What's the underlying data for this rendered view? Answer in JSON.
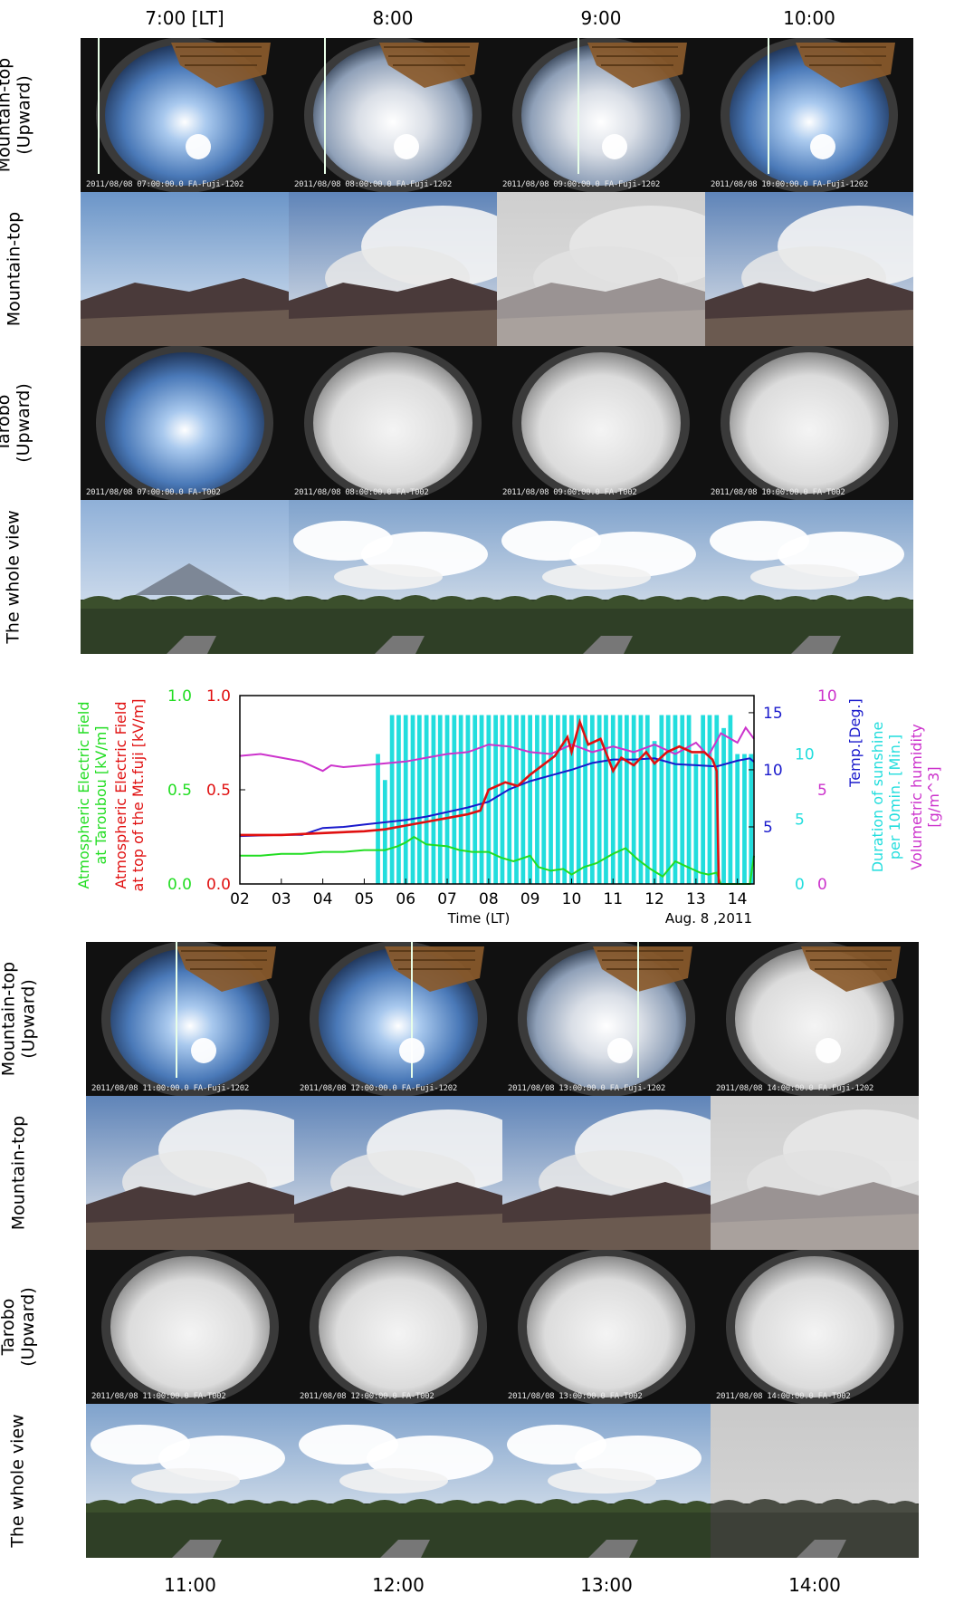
{
  "colors": {
    "electric_taroubou": "#22dd22",
    "electric_fuji": "#e01010",
    "temperature": "#1a1acc",
    "sunshine": "#22dddd",
    "humidity": "#cc33cc"
  },
  "top_times": [
    "7:00 [LT]",
    "8:00",
    "9:00",
    "10:00"
  ],
  "bottom_times": [
    "11:00",
    "12:00",
    "13:00",
    "14:00"
  ],
  "rows": [
    {
      "key": "mt_up",
      "line1": "Mountain-top",
      "line2": "(Upward)"
    },
    {
      "key": "mt",
      "line1": "Mountain-top",
      "line2": ""
    },
    {
      "key": "tarobo",
      "line1": "Tarobo",
      "line2": "(Upward)"
    },
    {
      "key": "whole",
      "line1": "The whole view",
      "line2": ""
    }
  ],
  "stamps": {
    "top": {
      "mt_up": [
        "2011/08/08 07:00:00.0 FA-Fuji-1202",
        "2011/08/08 08:00:00.0 FA-Fuji-1202",
        "2011/08/08 09:00:00.0 FA-Fuji-1202",
        "2011/08/08 10:00:00.0 FA-Fuji-1202"
      ],
      "tarobo": [
        "2011/08/08 07:00:00.0 FA-T002",
        "2011/08/08 08:00:00.0 FA-T002",
        "2011/08/08 09:00:00.0 FA-T002",
        "2011/08/08 10:00:00.0 FA-T002"
      ]
    },
    "bottom": {
      "mt_up": [
        "2011/08/08 11:00:00.0 FA-Fuji-1202",
        "2011/08/08 12:00:00.0 FA-Fuji-1202",
        "2011/08/08 13:00:00.0 FA-Fuji-1202",
        "2011/08/08 14:00:00.0 FA-Fuji-1202"
      ],
      "tarobo": [
        "2011/08/08 11:00:00.0 FA-T002",
        "2011/08/08 12:00:00.0 FA-T002",
        "2011/08/08 13:00:00.0 FA-T002",
        "2011/08/08 14:00:00.0 FA-T002"
      ]
    }
  },
  "chart_data": {
    "type": "line",
    "xlabel": "Time (LT)",
    "date_label": "Aug. 8 ,2011",
    "x_ticks": [
      "02",
      "03",
      "04",
      "05",
      "06",
      "07",
      "08",
      "09",
      "10",
      "11",
      "12",
      "13",
      "14"
    ],
    "xlim": [
      2,
      14.4
    ],
    "axes": {
      "electric_taroubou": {
        "label_lines": [
          "Atmospheric Electric Field",
          "at Taroubou [kV/m]"
        ],
        "ylim": [
          0,
          1.0
        ],
        "ticks": [
          "0.0",
          "0.5",
          "1.0"
        ]
      },
      "electric_fuji": {
        "label_lines": [
          "Atmospheric Electric Field",
          "at top of the Mt.fuji [kV/m]"
        ],
        "ylim": [
          0,
          1.0
        ],
        "ticks": [
          "0.0",
          "0.5",
          "1.0"
        ]
      },
      "temperature": {
        "label_lines": [
          "Temp.[Deg.]"
        ],
        "ylim": [
          0,
          16.5
        ],
        "ticks": [
          "5",
          "10",
          "15"
        ]
      },
      "sunshine": {
        "label_lines": [
          "Duration of sunshine",
          "per 10min. [Min.]"
        ],
        "ylim": [
          0,
          14.5
        ],
        "ticks": [
          "0",
          "5",
          "10"
        ]
      },
      "humidity": {
        "label_lines": [
          "Volumetric humidity",
          "[g/m^3]"
        ],
        "ylim": [
          0,
          10
        ],
        "ticks": [
          "0",
          "5",
          "10"
        ]
      }
    },
    "series": [
      {
        "name": "Atmospheric Electric Field at Taroubou [kV/m]",
        "axis": "electric_taroubou",
        "x": [
          2.0,
          2.5,
          3.0,
          3.5,
          4.0,
          4.5,
          5.0,
          5.5,
          5.8,
          6.0,
          6.2,
          6.5,
          7.0,
          7.3,
          7.6,
          8.0,
          8.3,
          8.6,
          9.0,
          9.2,
          9.5,
          9.8,
          10.0,
          10.3,
          10.6,
          11.0,
          11.3,
          11.6,
          11.9,
          12.2,
          12.5,
          12.8,
          13.1,
          13.3,
          13.5,
          13.6,
          14.3,
          14.4
        ],
        "y": [
          0.15,
          0.15,
          0.16,
          0.16,
          0.17,
          0.17,
          0.18,
          0.18,
          0.2,
          0.22,
          0.25,
          0.21,
          0.2,
          0.18,
          0.17,
          0.17,
          0.14,
          0.12,
          0.15,
          0.09,
          0.07,
          0.08,
          0.05,
          0.09,
          0.11,
          0.16,
          0.19,
          0.13,
          0.08,
          0.04,
          0.12,
          0.09,
          0.06,
          0.05,
          0.06,
          0.0,
          0.0,
          0.15
        ]
      },
      {
        "name": "Atmospheric Electric Field at top of the Mt.fuji [kV/m]",
        "axis": "electric_fuji",
        "x": [
          2.0,
          3.0,
          4.0,
          5.0,
          5.5,
          6.0,
          6.5,
          7.0,
          7.5,
          7.8,
          8.0,
          8.4,
          8.7,
          9.0,
          9.3,
          9.6,
          9.9,
          10.0,
          10.2,
          10.4,
          10.7,
          11.0,
          11.2,
          11.5,
          11.8,
          12.0,
          12.3,
          12.6,
          12.9,
          13.2,
          13.4,
          13.5,
          13.55
        ],
        "y": [
          0.26,
          0.26,
          0.27,
          0.28,
          0.29,
          0.31,
          0.33,
          0.35,
          0.37,
          0.39,
          0.5,
          0.54,
          0.52,
          0.58,
          0.63,
          0.68,
          0.78,
          0.7,
          0.86,
          0.74,
          0.77,
          0.6,
          0.67,
          0.63,
          0.7,
          0.64,
          0.7,
          0.73,
          0.7,
          0.7,
          0.66,
          0.6,
          0.0
        ]
      },
      {
        "name": "Temp.[Deg.]",
        "axis": "temperature",
        "x": [
          2.0,
          3.0,
          3.5,
          4.0,
          4.5,
          5.0,
          5.5,
          6.0,
          6.5,
          7.0,
          7.5,
          8.0,
          8.5,
          9.0,
          9.5,
          10.0,
          10.5,
          11.0,
          11.5,
          12.0,
          12.5,
          13.0,
          13.5,
          14.0,
          14.3,
          14.4
        ],
        "y": [
          4.2,
          4.3,
          4.3,
          4.9,
          5.0,
          5.2,
          5.4,
          5.6,
          5.9,
          6.3,
          6.7,
          7.2,
          8.3,
          9.0,
          9.5,
          10.0,
          10.6,
          10.9,
          10.9,
          11.0,
          10.5,
          10.4,
          10.3,
          10.8,
          11.0,
          10.7
        ]
      },
      {
        "name": "Volumetric humidity [g/m^3]",
        "axis": "humidity",
        "x": [
          2.0,
          2.5,
          3.0,
          3.5,
          4.0,
          4.2,
          4.5,
          5.0,
          5.5,
          6.0,
          6.5,
          7.0,
          7.5,
          8.0,
          8.5,
          9.0,
          9.5,
          10.0,
          10.5,
          11.0,
          11.5,
          12.0,
          12.5,
          13.0,
          13.3,
          13.6,
          14.0,
          14.2,
          14.4
        ],
        "y": [
          6.8,
          6.9,
          6.7,
          6.5,
          6.0,
          6.3,
          6.2,
          6.3,
          6.4,
          6.5,
          6.7,
          6.9,
          7.0,
          7.4,
          7.3,
          7.0,
          6.9,
          7.4,
          7.0,
          7.3,
          7.0,
          7.4,
          6.9,
          7.5,
          6.8,
          8.0,
          7.5,
          8.3,
          7.7
        ]
      },
      {
        "name": "Duration of sunshine per 10min. [Min.]",
        "axis": "sunshine",
        "type": "bar",
        "x": [
          5.33,
          5.5,
          5.67,
          5.83,
          6.0,
          6.17,
          6.33,
          6.5,
          6.67,
          6.83,
          7.0,
          7.17,
          7.33,
          7.5,
          7.67,
          7.83,
          8.0,
          8.17,
          8.33,
          8.5,
          8.67,
          8.83,
          9.0,
          9.17,
          9.33,
          9.5,
          9.67,
          9.83,
          10.0,
          10.17,
          10.33,
          10.5,
          10.67,
          10.83,
          11.0,
          11.17,
          11.33,
          11.5,
          11.67,
          11.83,
          12.0,
          12.17,
          12.33,
          12.5,
          12.67,
          12.83,
          13.0,
          13.17,
          13.33,
          13.5,
          13.67,
          13.83,
          14.0,
          14.17,
          14.33
        ],
        "y": [
          10,
          8,
          13,
          13,
          13,
          13,
          13,
          13,
          13,
          13,
          13,
          13,
          13,
          13,
          13,
          13,
          13,
          13,
          13,
          13,
          13,
          13,
          13,
          13,
          13,
          13,
          13,
          13,
          13,
          13,
          13,
          13,
          13,
          13,
          13,
          13,
          13,
          13,
          13,
          13,
          11,
          13,
          13,
          13,
          13,
          13,
          10,
          13,
          13,
          13,
          12,
          13,
          10,
          10,
          10
        ]
      }
    ]
  }
}
